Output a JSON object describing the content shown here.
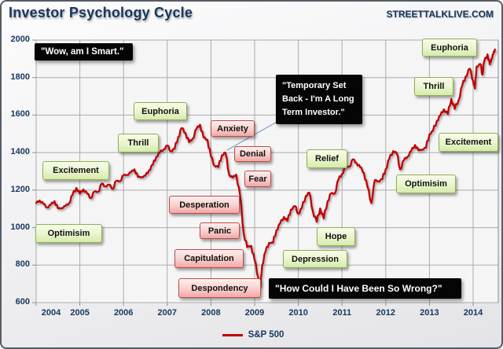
{
  "header": {
    "title": "Investor Psychology Cycle",
    "watermark": "STREETTALKLIVE.COM"
  },
  "legend": {
    "sp500": "S&P 500"
  },
  "callouts": {
    "positive": [
      {
        "label": "Excitement"
      },
      {
        "label": "Optimisim"
      },
      {
        "label": "Thrill"
      },
      {
        "label": "Euphoria"
      },
      {
        "label": "Relief"
      },
      {
        "label": "Hope"
      },
      {
        "label": "Depression"
      },
      {
        "label": "Optimisim"
      },
      {
        "label": "Excitement"
      },
      {
        "label": "Thrill"
      },
      {
        "label": "Euphoria"
      }
    ],
    "negative": [
      {
        "label": "Anxiety"
      },
      {
        "label": "Denial"
      },
      {
        "label": "Fear"
      },
      {
        "label": "Desperation"
      },
      {
        "label": "Panic"
      },
      {
        "label": "Capitulation"
      },
      {
        "label": "Despondency"
      }
    ],
    "quotes": [
      {
        "text": "\"Wow, am I Smart.\""
      },
      {
        "text": "\"Temporary Set Back - I'm A Long Term Investor.\""
      },
      {
        "text": "\"How Could I Have Been So Wrong?\""
      }
    ]
  },
  "colors": {
    "line": "#C00000",
    "axis_text": "#17365D",
    "grid": "#ABABAB",
    "axis": "#8C8C8C",
    "positive_border": "#8FAF50",
    "negative_border": "#BE4B48",
    "connector": "#7E9CC9"
  },
  "chart_data": {
    "type": "line",
    "title": "Investor Psychology Cycle",
    "series_name": "S&P 500",
    "xlabel": "",
    "ylabel": "",
    "x_ticks": [
      "2004",
      "2005",
      "2006",
      "2007",
      "2008",
      "2009",
      "2010",
      "2011",
      "2012",
      "2013",
      "2014"
    ],
    "y_ticks": [
      2000,
      1800,
      1600,
      1400,
      1200,
      1000,
      800,
      600
    ],
    "xlim": [
      2004,
      2014.58
    ],
    "ylim": [
      600,
      2000
    ],
    "grid": true,
    "legend_position": "bottom",
    "points": [
      [
        2004.0,
        1131
      ],
      [
        2004.08,
        1145
      ],
      [
        2004.17,
        1126
      ],
      [
        2004.25,
        1107
      ],
      [
        2004.33,
        1121
      ],
      [
        2004.42,
        1141
      ],
      [
        2004.5,
        1102
      ],
      [
        2004.58,
        1104
      ],
      [
        2004.67,
        1115
      ],
      [
        2004.75,
        1130
      ],
      [
        2004.83,
        1174
      ],
      [
        2004.92,
        1212
      ],
      [
        2005.0,
        1181
      ],
      [
        2005.08,
        1204
      ],
      [
        2005.17,
        1181
      ],
      [
        2005.25,
        1157
      ],
      [
        2005.33,
        1192
      ],
      [
        2005.42,
        1191
      ],
      [
        2005.5,
        1234
      ],
      [
        2005.58,
        1220
      ],
      [
        2005.67,
        1229
      ],
      [
        2005.75,
        1207
      ],
      [
        2005.83,
        1249
      ],
      [
        2005.92,
        1248
      ],
      [
        2006.0,
        1280
      ],
      [
        2006.08,
        1281
      ],
      [
        2006.17,
        1295
      ],
      [
        2006.25,
        1311
      ],
      [
        2006.33,
        1270
      ],
      [
        2006.42,
        1270
      ],
      [
        2006.5,
        1277
      ],
      [
        2006.58,
        1304
      ],
      [
        2006.67,
        1336
      ],
      [
        2006.75,
        1378
      ],
      [
        2006.83,
        1401
      ],
      [
        2006.92,
        1418
      ],
      [
        2007.0,
        1438
      ],
      [
        2007.08,
        1407
      ],
      [
        2007.17,
        1421
      ],
      [
        2007.25,
        1482
      ],
      [
        2007.33,
        1531
      ],
      [
        2007.42,
        1503
      ],
      [
        2007.5,
        1455
      ],
      [
        2007.58,
        1474
      ],
      [
        2007.67,
        1527
      ],
      [
        2007.75,
        1549
      ],
      [
        2007.83,
        1481
      ],
      [
        2007.92,
        1468
      ],
      [
        2008.0,
        1379
      ],
      [
        2008.08,
        1331
      ],
      [
        2008.17,
        1323
      ],
      [
        2008.25,
        1386
      ],
      [
        2008.33,
        1400
      ],
      [
        2008.42,
        1280
      ],
      [
        2008.5,
        1267
      ],
      [
        2008.58,
        1283
      ],
      [
        2008.67,
        1166
      ],
      [
        2008.75,
        969
      ],
      [
        2008.83,
        896
      ],
      [
        2008.92,
        903
      ],
      [
        2009.0,
        826
      ],
      [
        2009.08,
        735
      ],
      [
        2009.13,
        683
      ],
      [
        2009.17,
        798
      ],
      [
        2009.25,
        873
      ],
      [
        2009.33,
        919
      ],
      [
        2009.42,
        919
      ],
      [
        2009.5,
        987
      ],
      [
        2009.58,
        1021
      ],
      [
        2009.67,
        1057
      ],
      [
        2009.75,
        1036
      ],
      [
        2009.83,
        1096
      ],
      [
        2009.92,
        1115
      ],
      [
        2010.0,
        1074
      ],
      [
        2010.08,
        1104
      ],
      [
        2010.17,
        1169
      ],
      [
        2010.25,
        1187
      ],
      [
        2010.33,
        1089
      ],
      [
        2010.42,
        1031
      ],
      [
        2010.5,
        1102
      ],
      [
        2010.58,
        1049
      ],
      [
        2010.67,
        1141
      ],
      [
        2010.75,
        1183
      ],
      [
        2010.83,
        1181
      ],
      [
        2010.92,
        1258
      ],
      [
        2011.0,
        1286
      ],
      [
        2011.08,
        1327
      ],
      [
        2011.17,
        1326
      ],
      [
        2011.25,
        1364
      ],
      [
        2011.33,
        1345
      ],
      [
        2011.42,
        1321
      ],
      [
        2011.5,
        1292
      ],
      [
        2011.58,
        1219
      ],
      [
        2011.67,
        1131
      ],
      [
        2011.75,
        1253
      ],
      [
        2011.83,
        1247
      ],
      [
        2011.92,
        1258
      ],
      [
        2012.0,
        1312
      ],
      [
        2012.08,
        1366
      ],
      [
        2012.17,
        1408
      ],
      [
        2012.25,
        1398
      ],
      [
        2012.33,
        1310
      ],
      [
        2012.42,
        1362
      ],
      [
        2012.5,
        1379
      ],
      [
        2012.58,
        1407
      ],
      [
        2012.67,
        1441
      ],
      [
        2012.75,
        1412
      ],
      [
        2012.83,
        1416
      ],
      [
        2012.92,
        1426
      ],
      [
        2013.0,
        1498
      ],
      [
        2013.08,
        1515
      ],
      [
        2013.17,
        1569
      ],
      [
        2013.25,
        1598
      ],
      [
        2013.33,
        1631
      ],
      [
        2013.42,
        1606
      ],
      [
        2013.5,
        1686
      ],
      [
        2013.58,
        1633
      ],
      [
        2013.67,
        1682
      ],
      [
        2013.75,
        1757
      ],
      [
        2013.83,
        1806
      ],
      [
        2013.92,
        1848
      ],
      [
        2014.0,
        1783
      ],
      [
        2014.04,
        1742
      ],
      [
        2014.08,
        1859
      ],
      [
        2014.17,
        1872
      ],
      [
        2014.21,
        1815
      ],
      [
        2014.25,
        1884
      ],
      [
        2014.33,
        1924
      ],
      [
        2014.38,
        1870
      ],
      [
        2014.42,
        1900
      ],
      [
        2014.46,
        1925
      ],
      [
        2014.5,
        1950
      ]
    ]
  }
}
